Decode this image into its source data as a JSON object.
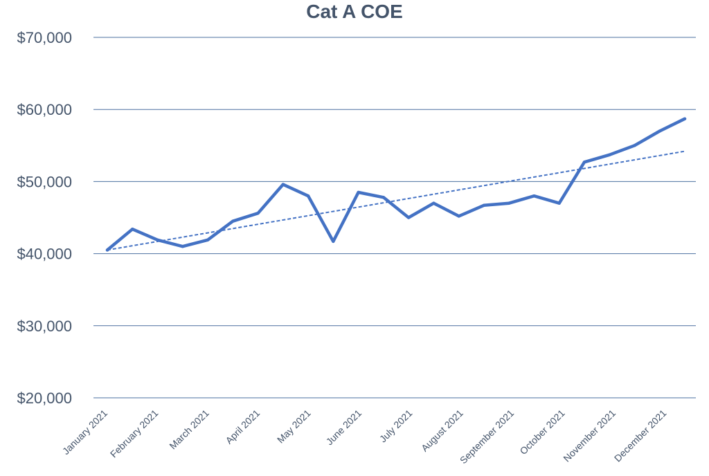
{
  "chart_data": {
    "type": "line",
    "title": "Cat A COE",
    "xlabel": "",
    "ylabel": "",
    "x_tick_labels": [
      "January 2021",
      "February 2021",
      "March 2021",
      "April 2021",
      "May 2021",
      "June 2021",
      "July 2021",
      "August 2021",
      "September 2021",
      "October 2021",
      "November 2021",
      "December 2021"
    ],
    "y_tick_labels": [
      "$20,000",
      "$30,000",
      "$40,000",
      "$50,000",
      "$60,000",
      "$70,000"
    ],
    "y_ticks": [
      20000,
      30000,
      40000,
      50000,
      60000,
      70000
    ],
    "ylim": [
      20000,
      70000
    ],
    "grid": true,
    "legend": "none",
    "series": [
      {
        "values": [
          40500,
          43400,
          41900,
          41000,
          41900,
          44500,
          45600,
          49600,
          48000,
          41700,
          48500,
          47800,
          45000,
          47000,
          45200,
          46700,
          47000,
          48000,
          47000,
          52700,
          53700,
          55000,
          57000,
          58700
        ],
        "color": "#4472c4"
      }
    ],
    "trendline": {
      "type": "linear",
      "start": 40500,
      "end": 54200,
      "color": "#4472c4",
      "style": "dashed"
    },
    "colors": {
      "grid": "#4a6f9f",
      "text": "#44546a"
    }
  }
}
